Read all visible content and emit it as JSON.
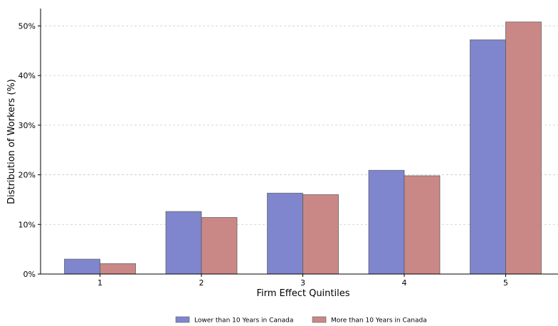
{
  "chart_data": {
    "type": "bar",
    "categories": [
      "1",
      "2",
      "3",
      "4",
      "5"
    ],
    "series": [
      {
        "name": "Lower than 10 Years in Canada",
        "values": [
          3.0,
          12.6,
          16.3,
          20.9,
          47.2
        ],
        "color": "#7f86cd"
      },
      {
        "name": "More than 10 Years in Canada",
        "values": [
          2.1,
          11.4,
          16.0,
          19.8,
          50.8
        ],
        "color": "#c98886"
      }
    ],
    "xlabel": "Firm Effect Quintiles",
    "ylabel": "Distribution of Workers (%)",
    "ylim": [
      0,
      53.5
    ],
    "yticks": [
      0,
      10,
      20,
      30,
      40,
      50
    ],
    "ytick_labels": [
      "0%",
      "10%",
      "20%",
      "30%",
      "40%",
      "50%"
    ],
    "grid": "y-dashed",
    "legend_position": "bottom-center"
  }
}
